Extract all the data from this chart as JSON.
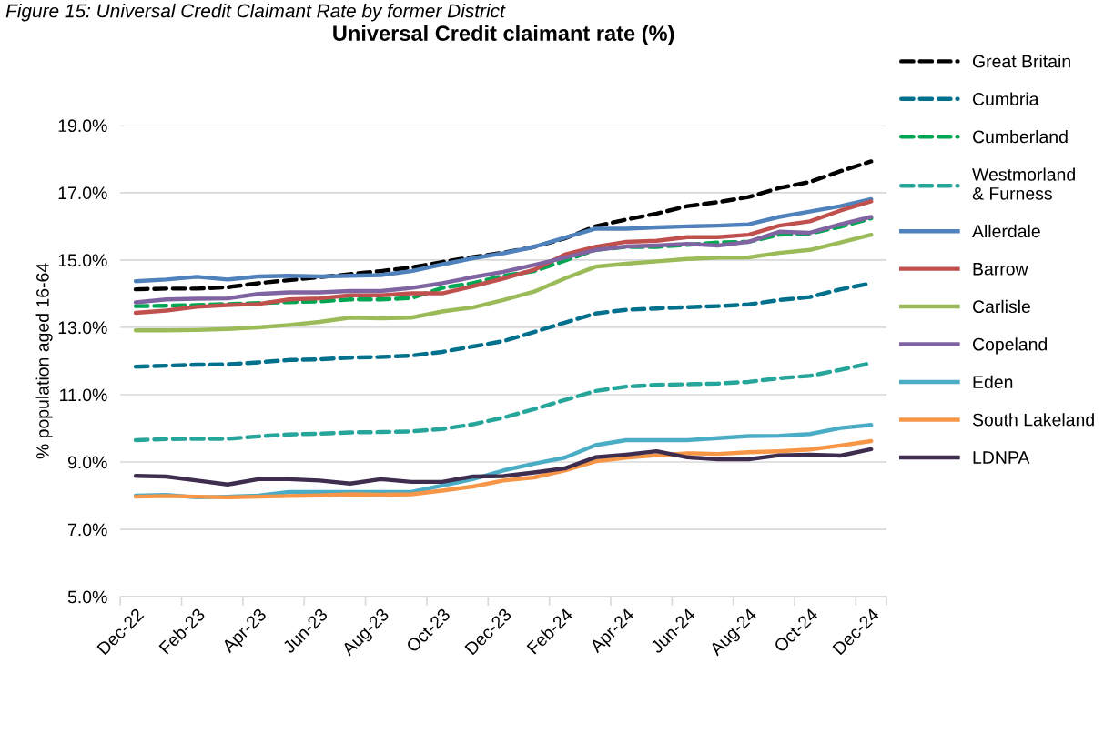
{
  "chart_data": {
    "type": "line",
    "title": "Universal Credit claimant rate (%)",
    "ylabel": "% population aged 16-64",
    "annotations": [
      "Figure 15: Universal Credit Claimant Rate by former District"
    ],
    "categories": [
      "Dec-22",
      null,
      "Feb-23",
      null,
      "Apr-23",
      null,
      "Jun-23",
      null,
      "Aug-23",
      null,
      "Oct-23",
      null,
      "Dec-23",
      null,
      "Feb-24",
      null,
      "Apr-24",
      null,
      "Jun-24",
      null,
      "Aug-24",
      null,
      "Oct-24",
      null,
      "Dec-24"
    ],
    "ylim": [
      5,
      19
    ],
    "yticks": [
      {
        "value": 5,
        "label": "5.0%"
      },
      {
        "value": 7,
        "label": "7.0%"
      },
      {
        "value": 9,
        "label": "9.0%"
      },
      {
        "value": 11,
        "label": "11.0%"
      },
      {
        "value": 13,
        "label": "13.0%"
      },
      {
        "value": 15,
        "label": "15.0%"
      },
      {
        "value": 17,
        "label": "17.0%"
      },
      {
        "value": 19,
        "label": "19.0%"
      }
    ],
    "grid": "y",
    "legend": "right",
    "marker": "none",
    "series": [
      {
        "name": "Great Britain",
        "color": "#000000",
        "line_style": "dashed",
        "values": [
          14.13,
          14.15,
          14.15,
          14.19,
          14.31,
          14.4,
          14.49,
          14.58,
          14.67,
          14.78,
          14.94,
          15.09,
          15.22,
          15.39,
          15.64,
          16.0,
          16.2,
          16.38,
          16.6,
          16.72,
          16.87,
          17.14,
          17.32,
          17.64,
          17.93
        ]
      },
      {
        "name": "Cumbria",
        "color": "#00708c",
        "line_style": "dashed",
        "values": [
          11.83,
          11.86,
          11.89,
          11.9,
          11.96,
          12.03,
          12.05,
          12.1,
          12.12,
          12.16,
          12.27,
          12.43,
          12.59,
          12.86,
          13.14,
          13.41,
          13.52,
          13.56,
          13.6,
          13.63,
          13.68,
          13.81,
          13.9,
          14.13,
          14.31
        ]
      },
      {
        "name": "Cumberland",
        "color": "#00a651",
        "line_style": "dashed",
        "values": [
          13.63,
          13.64,
          13.66,
          13.69,
          13.72,
          13.75,
          13.77,
          13.83,
          13.83,
          13.87,
          14.17,
          14.31,
          14.53,
          14.67,
          14.98,
          15.3,
          15.39,
          15.39,
          15.45,
          15.52,
          15.54,
          15.75,
          15.79,
          15.99,
          16.24
        ]
      },
      {
        "name": "Westmorland\n& Furness",
        "color": "#26a69a",
        "line_style": "dashed",
        "values": [
          9.65,
          9.68,
          9.69,
          9.69,
          9.76,
          9.82,
          9.84,
          9.88,
          9.89,
          9.91,
          9.98,
          10.12,
          10.32,
          10.57,
          10.84,
          11.11,
          11.24,
          11.29,
          11.31,
          11.33,
          11.38,
          11.49,
          11.56,
          11.74,
          11.94
        ]
      },
      {
        "name": "Allerdale",
        "color": "#4f81bd",
        "line_style": "solid",
        "values": [
          14.37,
          14.42,
          14.5,
          14.42,
          14.51,
          14.53,
          14.51,
          14.53,
          14.55,
          14.67,
          14.87,
          15.05,
          15.2,
          15.39,
          15.66,
          15.93,
          15.93,
          15.97,
          16.0,
          16.02,
          16.06,
          16.28,
          16.44,
          16.6,
          16.81
        ]
      },
      {
        "name": "Barrow",
        "color": "#c0504d",
        "line_style": "solid",
        "values": [
          13.43,
          13.5,
          13.61,
          13.66,
          13.69,
          13.83,
          13.86,
          13.95,
          13.95,
          14.01,
          14.01,
          14.22,
          14.45,
          14.71,
          15.16,
          15.39,
          15.54,
          15.57,
          15.68,
          15.68,
          15.75,
          16.02,
          16.15,
          16.47,
          16.74
        ]
      },
      {
        "name": "Carlisle",
        "color": "#9bbb59",
        "line_style": "solid",
        "values": [
          12.91,
          12.91,
          12.92,
          12.95,
          13.0,
          13.07,
          13.16,
          13.29,
          13.27,
          13.29,
          13.47,
          13.59,
          13.81,
          14.06,
          14.45,
          14.8,
          14.89,
          14.96,
          15.03,
          15.07,
          15.08,
          15.21,
          15.3,
          15.52,
          15.75
        ]
      },
      {
        "name": "Copeland",
        "color": "#8064a2",
        "line_style": "solid",
        "values": [
          13.74,
          13.83,
          13.85,
          13.86,
          13.99,
          14.04,
          14.04,
          14.08,
          14.08,
          14.17,
          14.31,
          14.49,
          14.65,
          14.85,
          15.07,
          15.3,
          15.4,
          15.43,
          15.48,
          15.43,
          15.54,
          15.84,
          15.81,
          16.06,
          16.28
        ]
      },
      {
        "name": "Eden",
        "color": "#4bacc6",
        "line_style": "solid",
        "values": [
          8.0,
          8.02,
          7.95,
          7.97,
          8.0,
          8.11,
          8.11,
          8.11,
          8.11,
          8.11,
          8.3,
          8.49,
          8.75,
          8.95,
          9.13,
          9.5,
          9.65,
          9.65,
          9.65,
          9.71,
          9.77,
          9.78,
          9.83,
          10.01,
          10.1
        ]
      },
      {
        "name": "South Lakeland",
        "color": "#f79646",
        "line_style": "solid",
        "values": [
          7.97,
          7.99,
          7.97,
          7.95,
          7.97,
          7.99,
          8.01,
          8.04,
          8.03,
          8.04,
          8.15,
          8.27,
          8.45,
          8.54,
          8.75,
          9.02,
          9.13,
          9.2,
          9.26,
          9.24,
          9.29,
          9.32,
          9.37,
          9.49,
          9.62
        ]
      },
      {
        "name": "LDNPA",
        "color": "#3f2d50",
        "line_style": "solid",
        "values": [
          8.59,
          8.57,
          8.45,
          8.33,
          8.49,
          8.49,
          8.45,
          8.36,
          8.49,
          8.41,
          8.41,
          8.57,
          8.58,
          8.69,
          8.81,
          9.14,
          9.22,
          9.32,
          9.14,
          9.08,
          9.08,
          9.2,
          9.22,
          9.19,
          9.38
        ]
      }
    ]
  }
}
